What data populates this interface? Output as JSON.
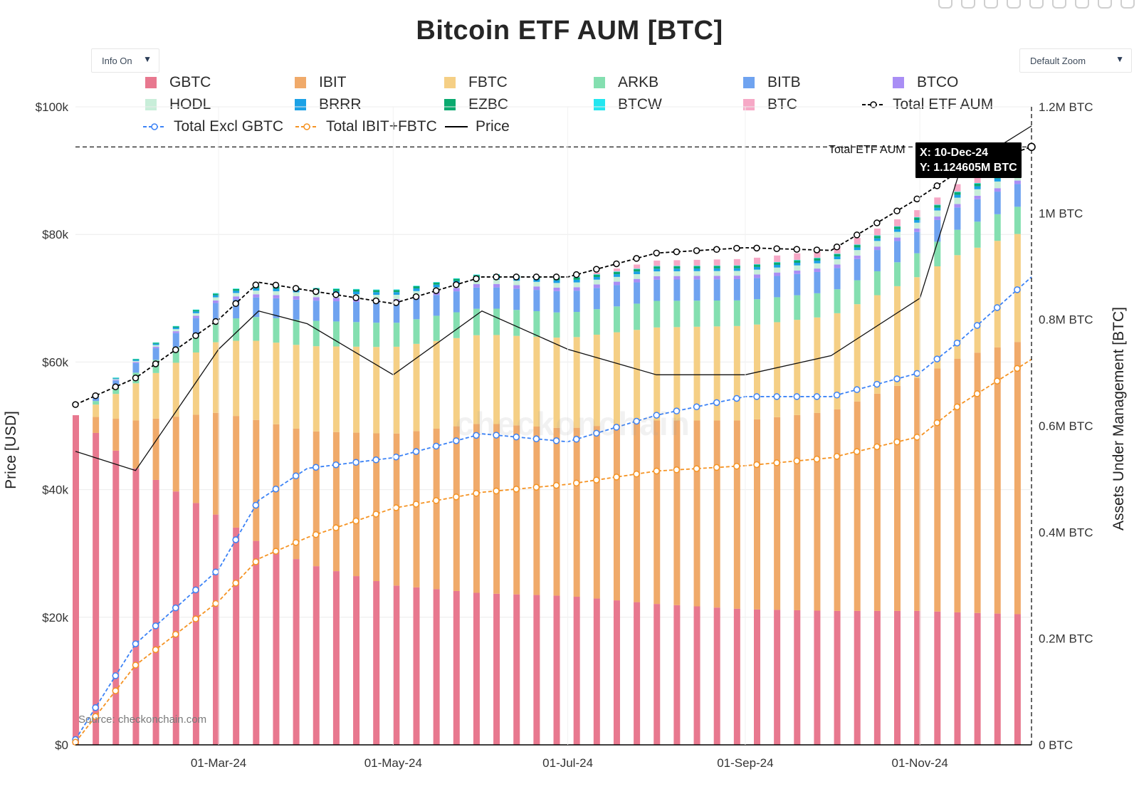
{
  "title": "Bitcoin ETF AUM [BTC]",
  "controls": {
    "info_label": "Info On",
    "zoom_label": "Default Zoom",
    "dropdown_arrow": "▼"
  },
  "source": "Source: checkonchain.com",
  "watermark": "checkonchain",
  "hover": {
    "series": "Total ETF AUM",
    "x_text": "X: 10-Dec-24",
    "y_text": "Y: 1.124605M BTC"
  },
  "colors": {
    "GBTC": "#e8788f",
    "IBIT": "#f0aa6a",
    "FBTC": "#f5cf85",
    "ARKB": "#84dfb0",
    "BITB": "#6fa3f0",
    "BTCO": "#a98ef5",
    "HODL": "#c8eed9",
    "BRRR": "#1ba1e6",
    "EZBC": "#0aaa6f",
    "BTCW": "#22e6f0",
    "BTC": "#f6a8c6",
    "total": "#000000",
    "excl_gbtc": "#3b82f6",
    "ibit_fbtc": "#f59323",
    "price": "#000000"
  },
  "legend": [
    {
      "label": "GBTC",
      "kind": "bar",
      "color": "#e8788f"
    },
    {
      "label": "IBIT",
      "kind": "bar",
      "color": "#f0aa6a"
    },
    {
      "label": "FBTC",
      "kind": "bar",
      "color": "#f5cf85"
    },
    {
      "label": "ARKB",
      "kind": "bar",
      "color": "#84dfb0"
    },
    {
      "label": "BITB",
      "kind": "bar",
      "color": "#6fa3f0"
    },
    {
      "label": "BTCO",
      "kind": "bar",
      "color": "#a98ef5"
    },
    {
      "label": "HODL",
      "kind": "bar",
      "color": "#c8eed9"
    },
    {
      "label": "BRRR",
      "kind": "bar",
      "color": "#1ba1e6"
    },
    {
      "label": "EZBC",
      "kind": "bar",
      "color": "#0aaa6f"
    },
    {
      "label": "BTCW",
      "kind": "bar",
      "color": "#22e6f0"
    },
    {
      "label": "BTC",
      "kind": "bar",
      "color": "#f6a8c6"
    },
    {
      "label": "Total ETF AUM",
      "kind": "dashmarker",
      "color": "#000000"
    },
    {
      "label": "Total Excl GBTC",
      "kind": "dashmarker",
      "color": "#3b82f6"
    },
    {
      "label": "Total IBIT+FBTC",
      "kind": "dashmarker",
      "color": "#f59323"
    },
    {
      "label": "Price",
      "kind": "line",
      "color": "#000000"
    }
  ],
  "chart_data": {
    "type": "bar",
    "title": "Bitcoin ETF AUM [BTC]",
    "ylabel_left": "Price [USD]",
    "ylabel_right": "Assets Under Management [BTC]",
    "x_ticks": [
      "01-Mar-24",
      "01-May-24",
      "01-Jul-24",
      "01-Sep-24",
      "01-Nov-24"
    ],
    "y_left_ticks": [
      "$0",
      "$20k",
      "$40k",
      "$60k",
      "$80k",
      "$100k"
    ],
    "y_right_ticks": [
      "0 BTC",
      "0.2M BTC",
      "0.4M BTC",
      "0.6M BTC",
      "0.8M BTC",
      "1M BTC",
      "1.2M BTC"
    ],
    "ylim_left": [
      0,
      100000
    ],
    "ylim_right": [
      0,
      1200000
    ],
    "stacked": true,
    "x": [
      "2024-01-11",
      "2024-02-01",
      "2024-03-01",
      "2024-03-15",
      "2024-04-01",
      "2024-05-01",
      "2024-06-01",
      "2024-07-01",
      "2024-08-01",
      "2024-09-01",
      "2024-10-01",
      "2024-11-01",
      "2024-11-15",
      "2024-12-10"
    ],
    "series": [
      {
        "name": "GBTC",
        "values": [
          620000,
          520000,
          430000,
          380000,
          340000,
          300000,
          285000,
          280000,
          265000,
          255000,
          252000,
          252000,
          249000,
          245000
        ]
      },
      {
        "name": "IBIT",
        "values": [
          0,
          90000,
          195000,
          230000,
          250000,
          285000,
          320000,
          315000,
          345000,
          355000,
          375000,
          440000,
          480000,
          520000
        ]
      },
      {
        "name": "FBTC",
        "values": [
          0,
          70000,
          135000,
          150000,
          160000,
          163000,
          167000,
          170000,
          175000,
          178000,
          180000,
          190000,
          195000,
          205000
        ]
      },
      {
        "name": "ARKB",
        "values": [
          0,
          20000,
          40000,
          45000,
          48000,
          45000,
          50000,
          47000,
          50000,
          48000,
          45000,
          45000,
          48000,
          52000
        ]
      },
      {
        "name": "BITB",
        "values": [
          0,
          18000,
          35000,
          37000,
          38000,
          38000,
          40000,
          40000,
          40000,
          40000,
          40000,
          40000,
          42000,
          43000
        ]
      },
      {
        "name": "BTCO",
        "values": [
          0,
          2000,
          5000,
          6000,
          6500,
          6500,
          6500,
          6500,
          6500,
          6500,
          6500,
          6500,
          6500,
          6500
        ]
      },
      {
        "name": "HODL",
        "values": [
          0,
          2000,
          6000,
          7000,
          7500,
          8000,
          8000,
          9000,
          9000,
          9000,
          10000,
          11000,
          12000,
          13000
        ]
      },
      {
        "name": "BRRR",
        "values": [
          0,
          2000,
          4000,
          4500,
          5000,
          5000,
          5000,
          5000,
          5000,
          5000,
          5000,
          5000,
          5500,
          6000
        ]
      },
      {
        "name": "EZBC",
        "values": [
          0,
          1500,
          3000,
          3500,
          3800,
          4000,
          4000,
          4200,
          4300,
          4400,
          4500,
          4600,
          5000,
          5500
        ]
      },
      {
        "name": "BTCW",
        "values": [
          0,
          500,
          1000,
          1000,
          1000,
          1000,
          1000,
          1000,
          1000,
          1000,
          1000,
          1000,
          1000,
          1000
        ]
      },
      {
        "name": "BTC",
        "values": [
          0,
          0,
          0,
          0,
          0,
          0,
          0,
          0,
          10000,
          12000,
          12500,
          13000,
          14000,
          15000
        ]
      }
    ],
    "lines": [
      {
        "name": "Total ETF AUM",
        "axis": "right",
        "values": [
          640000,
          690000,
          800000,
          870000,
          855000,
          830000,
          880000,
          880000,
          925000,
          935000,
          930000,
          1030000,
          1080000,
          1124605
        ]
      },
      {
        "name": "Total Excl GBTC",
        "axis": "right",
        "values": [
          10000,
          190000,
          330000,
          460000,
          520000,
          540000,
          585000,
          570000,
          620000,
          655000,
          655000,
          700000,
          760000,
          880000
        ]
      },
      {
        "name": "Total IBIT+FBTC",
        "axis": "right",
        "values": [
          5000,
          150000,
          270000,
          350000,
          390000,
          445000,
          475000,
          490000,
          515000,
          525000,
          540000,
          580000,
          640000,
          725000
        ]
      },
      {
        "name": "Price",
        "axis": "left",
        "values": [
          46000,
          43000,
          62000,
          68000,
          66000,
          58000,
          68000,
          62000,
          58000,
          58000,
          61000,
          70000,
          90000,
          97000
        ]
      }
    ],
    "hover_point": {
      "series": "Total ETF AUM",
      "x": "10-Dec-24",
      "y": 1124605
    },
    "reference_line": {
      "label": "Total ETF AUM",
      "value": 1124605,
      "axis": "right"
    },
    "grid": true,
    "legend_position": "top"
  }
}
